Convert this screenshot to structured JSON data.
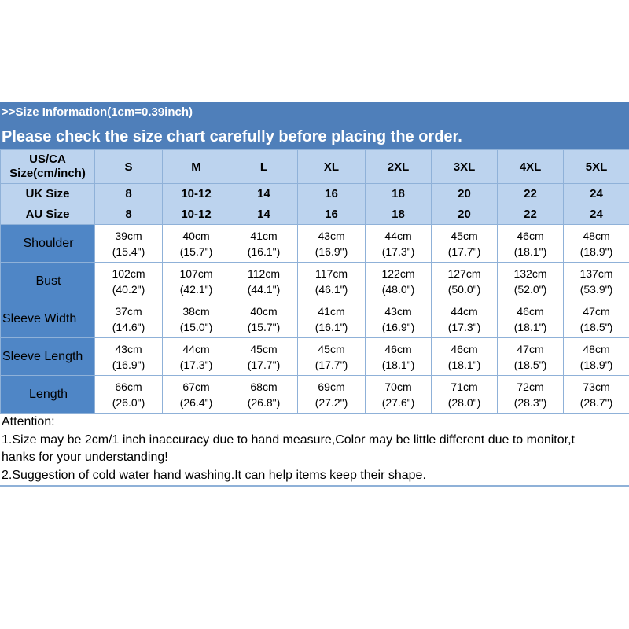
{
  "banner": {
    "info": ">>Size Information(1cm=0.39inch)",
    "notice": "Please check the size chart carefully before placing the order."
  },
  "header": {
    "us_label_line1": "US/CA",
    "us_label_line2": "Size(cm/inch)",
    "sizes": [
      "S",
      "M",
      "L",
      "XL",
      "2XL",
      "3XL",
      "4XL",
      "5XL"
    ],
    "uk_label": "UK Size",
    "uk": [
      "8",
      "10-12",
      "14",
      "16",
      "18",
      "20",
      "22",
      "24"
    ],
    "au_label": "AU Size",
    "au": [
      "8",
      "10-12",
      "14",
      "16",
      "18",
      "20",
      "22",
      "24"
    ]
  },
  "measurements": [
    {
      "label": "Shoulder",
      "cm": [
        "39cm",
        "40cm",
        "41cm",
        "43cm",
        "44cm",
        "45cm",
        "46cm",
        "48cm"
      ],
      "inch": [
        "(15.4\")",
        "(15.7\")",
        "(16.1\")",
        "(16.9\")",
        "(17.3\")",
        "(17.7\")",
        "(18.1\")",
        "(18.9\")"
      ]
    },
    {
      "label": "Bust",
      "cm": [
        "102cm",
        "107cm",
        "112cm",
        "117cm",
        "122cm",
        "127cm",
        "132cm",
        "137cm"
      ],
      "inch": [
        "(40.2\")",
        "(42.1\")",
        "(44.1\")",
        "(46.1\")",
        "(48.0\")",
        "(50.0\")",
        "(52.0\")",
        "(53.9\")"
      ]
    },
    {
      "label": "Sleeve Width",
      "cm": [
        "37cm",
        "38cm",
        "40cm",
        "41cm",
        "43cm",
        "44cm",
        "46cm",
        "47cm"
      ],
      "inch": [
        "(14.6\")",
        "(15.0\")",
        "(15.7\")",
        "(16.1\")",
        "(16.9\")",
        "(17.3\")",
        "(18.1\")",
        "(18.5\")"
      ]
    },
    {
      "label": "Sleeve Length",
      "cm": [
        "43cm",
        "44cm",
        "45cm",
        "45cm",
        "46cm",
        "46cm",
        "47cm",
        "48cm"
      ],
      "inch": [
        "(16.9\")",
        "(17.3\")",
        "(17.7\")",
        "(17.7\")",
        "(18.1\")",
        "(18.1\")",
        "(18.5\")",
        "(18.9\")"
      ]
    },
    {
      "label": "Length",
      "cm": [
        "66cm",
        "67cm",
        "68cm",
        "69cm",
        "70cm",
        "71cm",
        "72cm",
        "73cm"
      ],
      "inch": [
        "(26.0\")",
        "(26.4\")",
        "(26.8\")",
        "(27.2\")",
        "(27.6\")",
        "(28.0\")",
        "(28.3\")",
        "(28.7\")"
      ]
    }
  ],
  "notes": {
    "heading": "Attention:",
    "line1": "1.Size may be 2cm/1 inch inaccuracy due to hand measure,Color may be little different due to monitor,t",
    "line1_cont": "hanks for your understanding!",
    "line2": "2.Suggestion of cold water hand washing.It can help items keep their shape."
  }
}
